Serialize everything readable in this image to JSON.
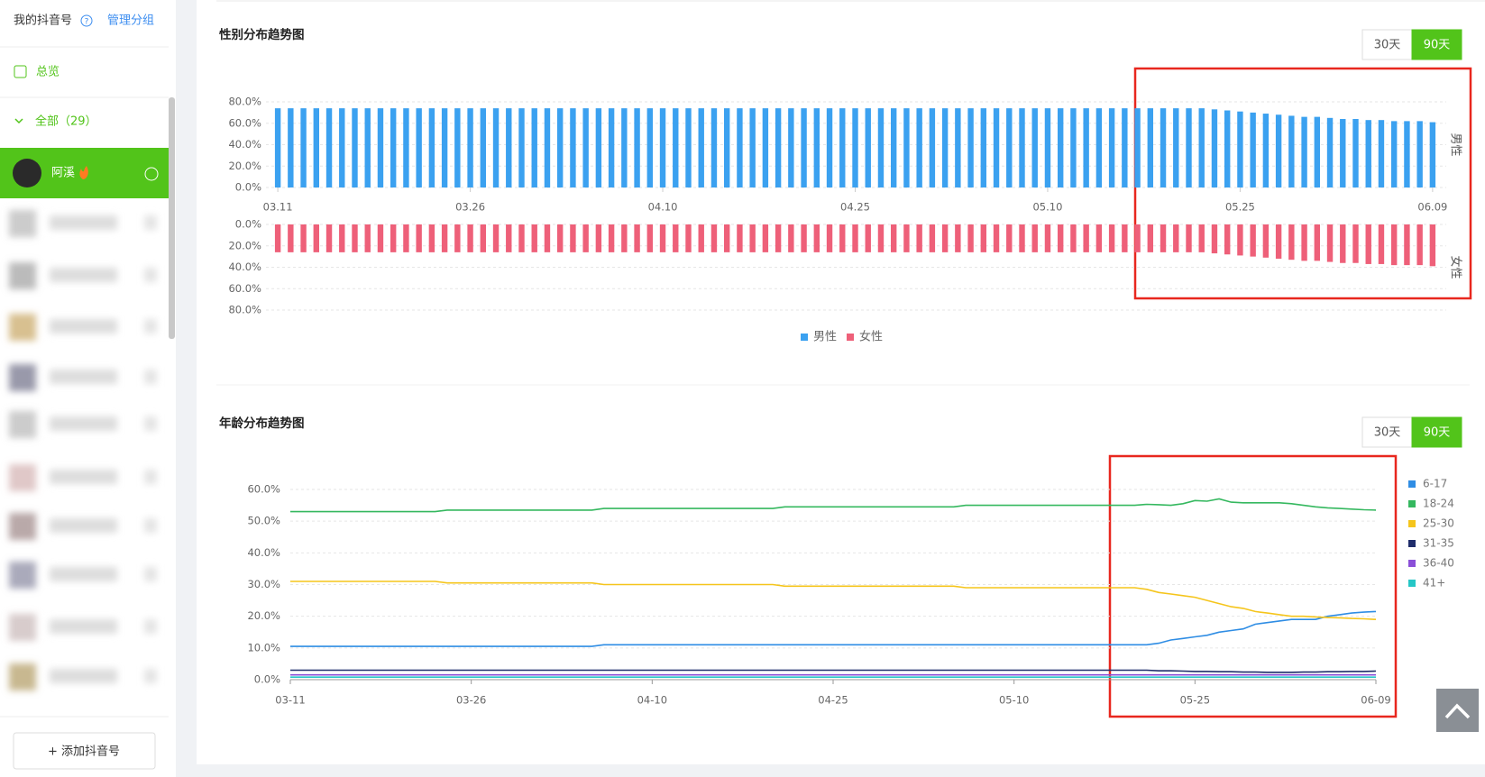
{
  "sidebar": {
    "account_label": "我的抖音号",
    "manage": "管理分组",
    "overview": "总览",
    "all": "全部（29）",
    "active_account": "阿溪",
    "add_button": "+ 添加抖音号"
  },
  "chart_data": [
    {
      "type": "bar",
      "title": "性别分布趋势图",
      "buttons": [
        "30天",
        "90天"
      ],
      "mirrored": true,
      "legend": "bottom",
      "grid": true,
      "categories": [
        "03.11",
        null,
        null,
        null,
        null,
        null,
        null,
        null,
        null,
        null,
        null,
        null,
        null,
        null,
        null,
        "03.26",
        null,
        null,
        null,
        null,
        null,
        null,
        null,
        null,
        null,
        null,
        null,
        null,
        null,
        null,
        "04.10",
        null,
        null,
        null,
        null,
        null,
        null,
        null,
        null,
        null,
        null,
        null,
        null,
        null,
        null,
        "04.25",
        null,
        null,
        null,
        null,
        null,
        null,
        null,
        null,
        null,
        null,
        null,
        null,
        null,
        null,
        "05.10",
        null,
        null,
        null,
        null,
        null,
        null,
        null,
        null,
        null,
        null,
        null,
        null,
        null,
        null,
        "05.25",
        null,
        null,
        null,
        null,
        null,
        null,
        null,
        null,
        null,
        null,
        null,
        null,
        null,
        null,
        "06.09"
      ],
      "ylim": [
        0,
        80
      ],
      "yticks": [
        {
          "value": 0,
          "label": "0.0%"
        },
        {
          "value": 20,
          "label": "20.0%"
        },
        {
          "value": 40,
          "label": "40.0%"
        },
        {
          "value": 60,
          "label": "60.0%"
        },
        {
          "value": 80,
          "label": "80.0%"
        }
      ],
      "series": [
        {
          "name": "男性",
          "color": "#3ba1f0",
          "values": [
            74,
            74,
            74,
            74,
            74,
            74,
            74,
            74,
            74,
            74,
            74,
            74,
            74,
            74,
            74,
            74,
            74,
            74,
            74,
            74,
            74,
            74,
            74,
            74,
            74,
            74,
            74,
            74,
            74,
            74,
            74,
            74,
            74,
            74,
            74,
            74,
            74,
            74,
            74,
            74,
            74,
            74,
            74,
            74,
            74,
            74,
            74,
            74,
            74,
            74,
            74,
            74,
            74,
            74,
            74,
            74,
            74,
            74,
            74,
            74,
            74,
            74,
            74,
            74,
            74,
            74,
            74,
            74,
            74,
            74,
            74,
            74,
            74,
            73,
            72,
            71,
            70,
            69,
            68,
            67,
            66,
            66,
            65,
            64,
            64,
            63,
            63,
            62,
            62,
            62,
            61
          ]
        },
        {
          "name": "女性",
          "color": "#ee6079",
          "values": [
            26,
            26,
            26,
            26,
            26,
            26,
            26,
            26,
            26,
            26,
            26,
            26,
            26,
            26,
            26,
            26,
            26,
            26,
            26,
            26,
            26,
            26,
            26,
            26,
            26,
            26,
            26,
            26,
            26,
            26,
            26,
            26,
            26,
            26,
            26,
            26,
            26,
            26,
            26,
            26,
            26,
            26,
            26,
            26,
            26,
            26,
            26,
            26,
            26,
            26,
            26,
            26,
            26,
            26,
            26,
            26,
            26,
            26,
            26,
            26,
            26,
            26,
            26,
            26,
            26,
            26,
            26,
            26,
            26,
            26,
            26,
            26,
            26,
            27,
            28,
            29,
            30,
            31,
            32,
            33,
            34,
            34,
            35,
            36,
            36,
            37,
            37,
            38,
            38,
            38,
            39
          ]
        }
      ]
    },
    {
      "type": "line",
      "title": "年龄分布趋势图",
      "buttons": [
        "30天",
        "90天"
      ],
      "legend": "right",
      "grid": true,
      "categories": [
        "03-11",
        null,
        null,
        null,
        null,
        null,
        null,
        null,
        null,
        null,
        null,
        null,
        null,
        null,
        null,
        "03-26",
        null,
        null,
        null,
        null,
        null,
        null,
        null,
        null,
        null,
        null,
        null,
        null,
        null,
        null,
        "04-10",
        null,
        null,
        null,
        null,
        null,
        null,
        null,
        null,
        null,
        null,
        null,
        null,
        null,
        null,
        "04-25",
        null,
        null,
        null,
        null,
        null,
        null,
        null,
        null,
        null,
        null,
        null,
        null,
        null,
        null,
        "05-10",
        null,
        null,
        null,
        null,
        null,
        null,
        null,
        null,
        null,
        null,
        null,
        null,
        null,
        null,
        "05-25",
        null,
        null,
        null,
        null,
        null,
        null,
        null,
        null,
        null,
        null,
        null,
        null,
        null,
        null,
        "06-09"
      ],
      "ylim": [
        0,
        60
      ],
      "yticks": [
        {
          "value": 0,
          "label": "0.0%"
        },
        {
          "value": 10,
          "label": "10.0%"
        },
        {
          "value": 20,
          "label": "20.0%"
        },
        {
          "value": 30,
          "label": "30.0%"
        },
        {
          "value": 40,
          "label": "40.0%"
        },
        {
          "value": 50,
          "label": "50.0%"
        },
        {
          "value": 60,
          "label": "60.0%"
        }
      ],
      "series": [
        {
          "name": "6-17",
          "color": "#2f8de4",
          "values": [
            10.5,
            10.5,
            10.5,
            10.5,
            10.5,
            10.5,
            10.5,
            10.5,
            10.5,
            10.5,
            10.5,
            10.5,
            10.5,
            10.5,
            10.5,
            10.5,
            10.5,
            10.5,
            10.5,
            10.5,
            10.5,
            10.5,
            10.5,
            10.5,
            10.5,
            10.5,
            11,
            11,
            11,
            11,
            11,
            11,
            11,
            11,
            11,
            11,
            11,
            11,
            11,
            11,
            11,
            11,
            11,
            11,
            11,
            11,
            11,
            11,
            11,
            11,
            11,
            11,
            11,
            11,
            11,
            11,
            11,
            11,
            11,
            11,
            11,
            11,
            11,
            11,
            11,
            11,
            11,
            11,
            11,
            11,
            11,
            11,
            11.5,
            12.5,
            13,
            13.5,
            14,
            15,
            15.5,
            16,
            17.5,
            18,
            18.5,
            19,
            19,
            19,
            20,
            20.5,
            21,
            21.3,
            21.5
          ]
        },
        {
          "name": "18-24",
          "color": "#35b85f",
          "values": [
            53,
            53,
            53,
            53,
            53,
            53,
            53,
            53,
            53,
            53,
            53,
            53,
            53,
            53.5,
            53.5,
            53.5,
            53.5,
            53.5,
            53.5,
            53.5,
            53.5,
            53.5,
            53.5,
            53.5,
            53.5,
            53.5,
            54,
            54,
            54,
            54,
            54,
            54,
            54,
            54,
            54,
            54,
            54,
            54,
            54,
            54,
            54,
            54.5,
            54.5,
            54.5,
            54.5,
            54.5,
            54.5,
            54.5,
            54.5,
            54.5,
            54.5,
            54.5,
            54.5,
            54.5,
            54.5,
            54.5,
            55,
            55,
            55,
            55,
            55,
            55,
            55,
            55,
            55,
            55,
            55,
            55,
            55,
            55,
            55,
            55.3,
            55.2,
            55,
            55.5,
            56.5,
            56.3,
            57,
            56,
            55.8,
            55.8,
            55.8,
            55.8,
            55.5,
            55,
            54.5,
            54.2,
            54,
            53.8,
            53.6,
            53.5
          ]
        },
        {
          "name": "25-30",
          "color": "#f5c51c",
          "values": [
            31,
            31,
            31,
            31,
            31,
            31,
            31,
            31,
            31,
            31,
            31,
            31,
            31,
            30.5,
            30.5,
            30.5,
            30.5,
            30.5,
            30.5,
            30.5,
            30.5,
            30.5,
            30.5,
            30.5,
            30.5,
            30.5,
            30,
            30,
            30,
            30,
            30,
            30,
            30,
            30,
            30,
            30,
            30,
            30,
            30,
            30,
            30,
            29.5,
            29.5,
            29.5,
            29.5,
            29.5,
            29.5,
            29.5,
            29.5,
            29.5,
            29.5,
            29.5,
            29.5,
            29.5,
            29.5,
            29.5,
            29,
            29,
            29,
            29,
            29,
            29,
            29,
            29,
            29,
            29,
            29,
            29,
            29,
            29,
            29,
            28.5,
            27.5,
            27,
            26.5,
            26,
            25,
            24,
            23,
            22.5,
            21.5,
            21,
            20.5,
            20,
            20,
            19.8,
            19.6,
            19.5,
            19.3,
            19.2,
            19
          ]
        },
        {
          "name": "31-35",
          "color": "#1f2d6b",
          "values": [
            3,
            3,
            3,
            3,
            3,
            3,
            3,
            3,
            3,
            3,
            3,
            3,
            3,
            3,
            3,
            3,
            3,
            3,
            3,
            3,
            3,
            3,
            3,
            3,
            3,
            3,
            3,
            3,
            3,
            3,
            3,
            3,
            3,
            3,
            3,
            3,
            3,
            3,
            3,
            3,
            3,
            3,
            3,
            3,
            3,
            3,
            3,
            3,
            3,
            3,
            3,
            3,
            3,
            3,
            3,
            3,
            3,
            3,
            3,
            3,
            3,
            3,
            3,
            3,
            3,
            3,
            3,
            3,
            3,
            3,
            3,
            3,
            2.8,
            2.8,
            2.7,
            2.6,
            2.6,
            2.5,
            2.5,
            2.4,
            2.4,
            2.3,
            2.3,
            2.3,
            2.4,
            2.4,
            2.5,
            2.5,
            2.6,
            2.6,
            2.7
          ]
        },
        {
          "name": "36-40",
          "color": "#8a4fd8",
          "values": [
            1.5,
            1.5,
            1.5,
            1.5,
            1.5,
            1.5,
            1.5,
            1.5,
            1.5,
            1.5,
            1.5,
            1.5,
            1.5,
            1.5,
            1.5,
            1.5,
            1.5,
            1.5,
            1.5,
            1.5,
            1.5,
            1.5,
            1.5,
            1.5,
            1.5,
            1.5,
            1.5,
            1.5,
            1.5,
            1.5,
            1.5,
            1.5,
            1.5,
            1.5,
            1.5,
            1.5,
            1.5,
            1.5,
            1.5,
            1.5,
            1.5,
            1.5,
            1.5,
            1.5,
            1.5,
            1.5,
            1.5,
            1.5,
            1.5,
            1.5,
            1.5,
            1.5,
            1.5,
            1.5,
            1.5,
            1.5,
            1.5,
            1.5,
            1.5,
            1.5,
            1.5,
            1.5,
            1.5,
            1.5,
            1.5,
            1.5,
            1.5,
            1.5,
            1.5,
            1.5,
            1.5,
            1.5,
            1.5,
            1.5,
            1.5,
            1.5,
            1.5,
            1.5,
            1.5,
            1.5,
            1.5,
            1.5,
            1.5,
            1.5,
            1.5,
            1.5,
            1.5,
            1.5,
            1.5,
            1.5,
            1.5
          ]
        },
        {
          "name": "41+",
          "color": "#26c6c6",
          "values": [
            0.8,
            0.8,
            0.8,
            0.8,
            0.8,
            0.8,
            0.8,
            0.8,
            0.8,
            0.8,
            0.8,
            0.8,
            0.8,
            0.8,
            0.8,
            0.8,
            0.8,
            0.8,
            0.8,
            0.8,
            0.8,
            0.8,
            0.8,
            0.8,
            0.8,
            0.8,
            0.8,
            0.8,
            0.8,
            0.8,
            0.8,
            0.8,
            0.8,
            0.8,
            0.8,
            0.8,
            0.8,
            0.8,
            0.8,
            0.8,
            0.8,
            0.8,
            0.8,
            0.8,
            0.8,
            0.8,
            0.8,
            0.8,
            0.8,
            0.8,
            0.8,
            0.8,
            0.8,
            0.8,
            0.8,
            0.8,
            0.8,
            0.8,
            0.8,
            0.8,
            0.8,
            0.8,
            0.8,
            0.8,
            0.8,
            0.8,
            0.8,
            0.8,
            0.8,
            0.8,
            0.8,
            0.8,
            0.8,
            0.8,
            0.8,
            0.8,
            0.8,
            0.8,
            0.8,
            0.8,
            0.8,
            0.8,
            0.8,
            0.8,
            0.8,
            0.8,
            0.8,
            0.8,
            0.8,
            0.8,
            0.8
          ]
        }
      ]
    }
  ]
}
